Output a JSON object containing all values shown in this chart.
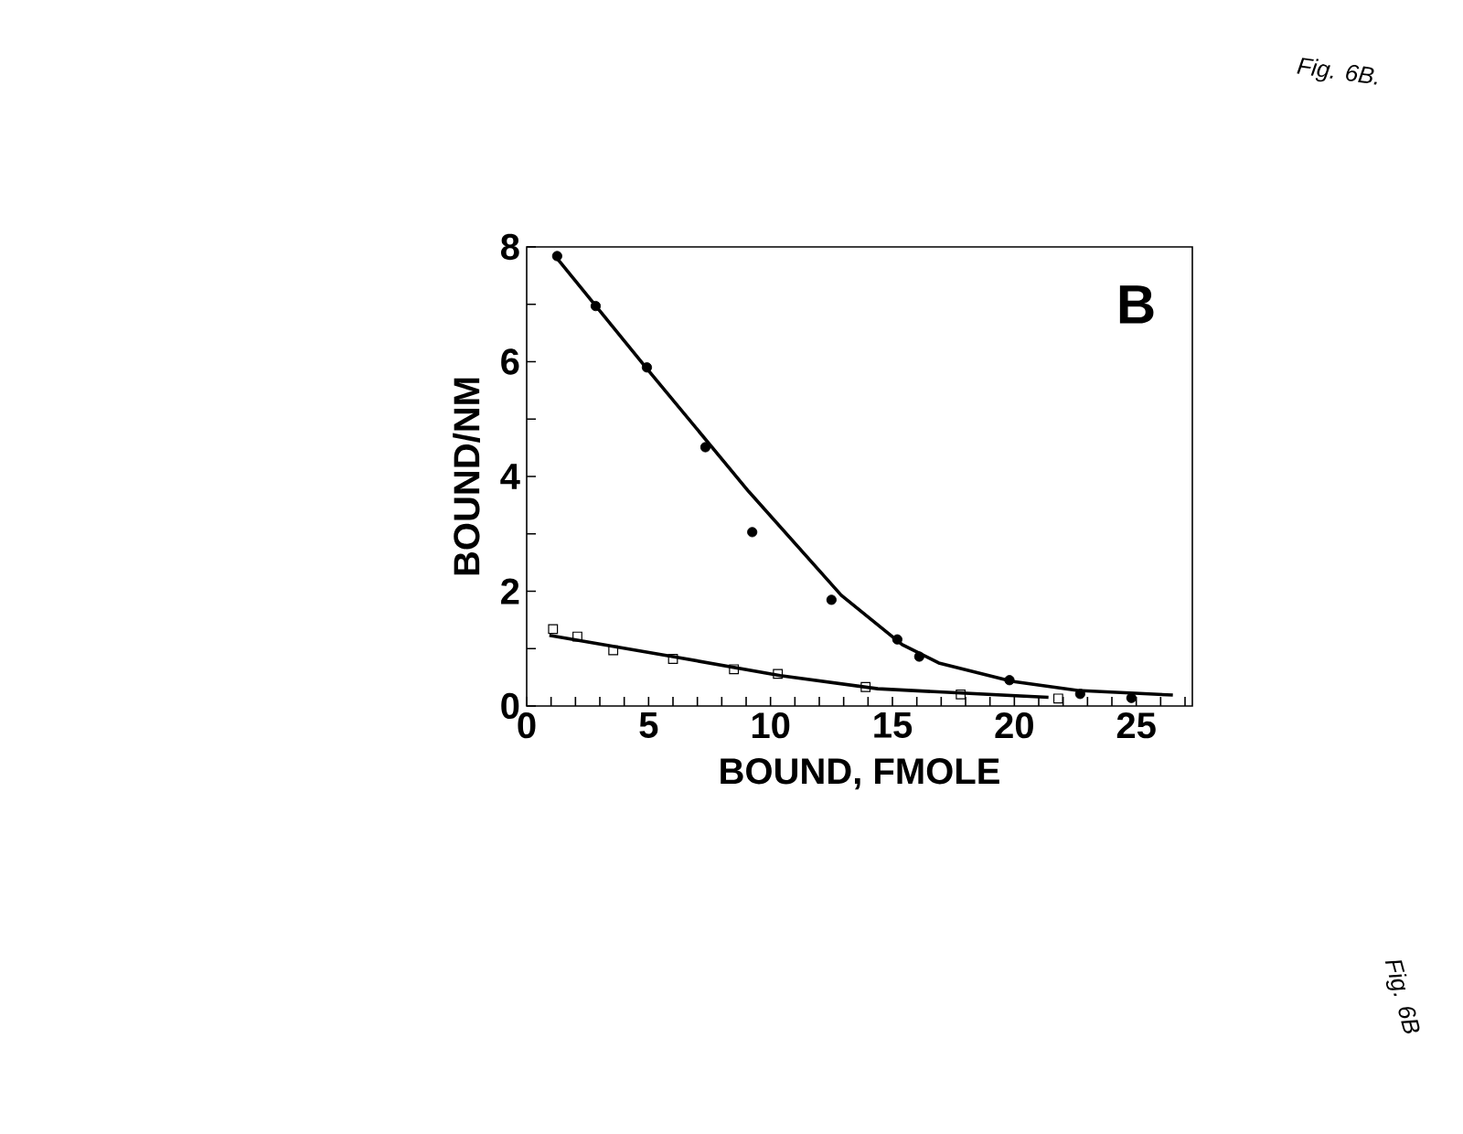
{
  "chart_data": {
    "type": "scatter",
    "xlabel": "BOUND, FMOLE",
    "ylabel": "BOUND/NM",
    "xlim": [
      0,
      27.3
    ],
    "ylim": [
      0,
      8
    ],
    "xticks": [
      0,
      {
        "value": 1,
        "label": null
      },
      {
        "value": 2,
        "label": null
      },
      {
        "value": 3,
        "label": null
      },
      {
        "value": 4,
        "label": null
      },
      5,
      {
        "value": 6,
        "label": null
      },
      {
        "value": 7,
        "label": null
      },
      {
        "value": 8,
        "label": null
      },
      {
        "value": 9,
        "label": null
      },
      10,
      {
        "value": 11,
        "label": null
      },
      {
        "value": 12,
        "label": null
      },
      {
        "value": 13,
        "label": null
      },
      {
        "value": 14,
        "label": null
      },
      15,
      {
        "value": 16,
        "label": null
      },
      {
        "value": 17,
        "label": null
      },
      {
        "value": 18,
        "label": null
      },
      {
        "value": 19,
        "label": null
      },
      20,
      {
        "value": 21,
        "label": null
      },
      {
        "value": 22,
        "label": null
      },
      {
        "value": 23,
        "label": null
      },
      {
        "value": 24,
        "label": null
      },
      25,
      {
        "value": 26,
        "label": null
      },
      {
        "value": 27,
        "label": null
      }
    ],
    "yticks": [
      0,
      {
        "value": 1,
        "label": null
      },
      2,
      {
        "value": 3,
        "label": null
      },
      4,
      {
        "value": 5,
        "label": null
      },
      6,
      {
        "value": 7,
        "label": null
      },
      8
    ],
    "grid": false,
    "annotations": [
      "B",
      "Fig. 6B.",
      "Fig. 6B"
    ],
    "series": [
      {
        "type": "scatter",
        "marker": "circle",
        "color": "#000000",
        "x": [
          1.25,
          2.83,
          4.93,
          7.33,
          9.25,
          12.5,
          15.2,
          16.1,
          19.8,
          22.7,
          24.8
        ],
        "values": [
          7.84,
          6.97,
          5.9,
          4.51,
          3.03,
          1.85,
          1.16,
          0.86,
          0.45,
          0.21,
          0.14
        ]
      },
      {
        "type": "scatter",
        "marker": "square",
        "color": "#000000",
        "x": [
          1.08,
          2.08,
          3.55,
          6.0,
          8.5,
          10.3,
          13.9,
          17.8,
          21.8
        ],
        "values": [
          1.34,
          1.21,
          0.97,
          0.82,
          0.64,
          0.56,
          0.33,
          0.2,
          0.13
        ]
      },
      {
        "type": "line",
        "marker": "none",
        "color": "#000000",
        "x": [
          1.25,
          4.93,
          9.1,
          12.9,
          15.4,
          16.9,
          19.9,
          22.6,
          26.5
        ],
        "values": [
          7.8,
          5.88,
          3.74,
          1.93,
          1.07,
          0.75,
          0.43,
          0.27,
          0.19
        ]
      },
      {
        "type": "line",
        "marker": "none",
        "color": "#000000",
        "x": [
          0.93,
          6.0,
          10.4,
          14.4,
          21.4
        ],
        "values": [
          1.23,
          0.86,
          0.53,
          0.3,
          0.15
        ]
      }
    ]
  }
}
